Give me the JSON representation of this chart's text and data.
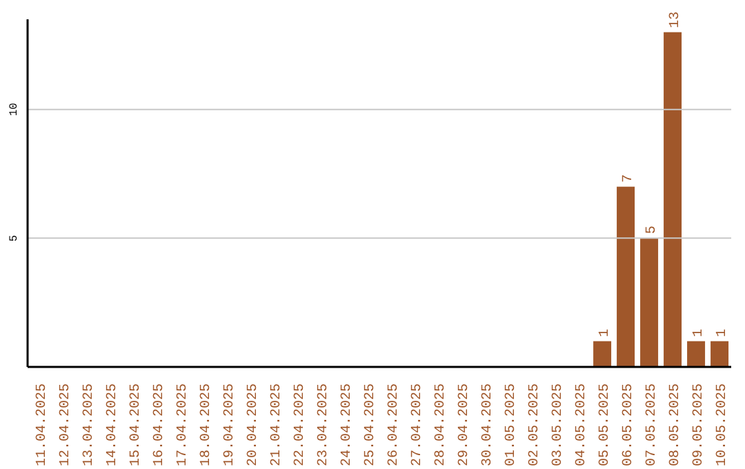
{
  "chart_data": {
    "type": "bar",
    "categories": [
      "11.04.2025",
      "12.04.2025",
      "13.04.2025",
      "14.04.2025",
      "15.04.2025",
      "16.04.2025",
      "17.04.2025",
      "18.04.2025",
      "19.04.2025",
      "20.04.2025",
      "21.04.2025",
      "22.04.2025",
      "23.04.2025",
      "24.04.2025",
      "25.04.2025",
      "26.04.2025",
      "27.04.2025",
      "28.04.2025",
      "29.04.2025",
      "30.04.2025",
      "01.05.2025",
      "02.05.2025",
      "03.05.2025",
      "04.05.2025",
      "05.05.2025",
      "06.05.2025",
      "07.05.2025",
      "08.05.2025",
      "09.05.2025",
      "10.05.2025"
    ],
    "values": [
      0,
      0,
      0,
      0,
      0,
      0,
      0,
      0,
      0,
      0,
      0,
      0,
      0,
      0,
      0,
      0,
      0,
      0,
      0,
      0,
      0,
      0,
      0,
      0,
      1,
      7,
      5,
      13,
      1,
      1
    ],
    "value_labels": [
      null,
      null,
      null,
      null,
      null,
      null,
      null,
      null,
      null,
      null,
      null,
      null,
      null,
      null,
      null,
      null,
      null,
      null,
      null,
      null,
      null,
      null,
      null,
      null,
      "1",
      "7",
      "5",
      "13",
      "1",
      "1"
    ],
    "color": "#a0572a",
    "ylim": [
      0,
      13.5
    ],
    "yticks": [
      5,
      10
    ],
    "grid": "y"
  }
}
